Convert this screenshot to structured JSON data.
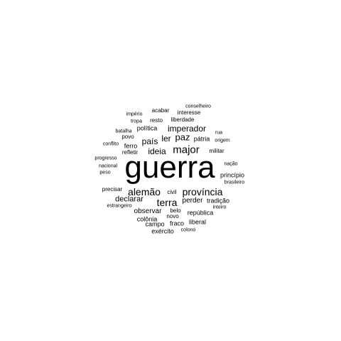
{
  "words": [
    {
      "text": "guerra"
    },
    {
      "text": "alemão"
    },
    {
      "text": "província"
    },
    {
      "text": "major"
    },
    {
      "text": "terra"
    },
    {
      "text": "imperador"
    },
    {
      "text": "paz"
    },
    {
      "text": "país"
    },
    {
      "text": "ideia"
    },
    {
      "text": "ler"
    },
    {
      "text": "declarar"
    },
    {
      "text": "perder"
    },
    {
      "text": "observar"
    },
    {
      "text": "política"
    },
    {
      "text": "pátria"
    },
    {
      "text": "república"
    },
    {
      "text": "tradição"
    },
    {
      "text": "princípio"
    },
    {
      "text": "militar"
    },
    {
      "text": "civil"
    },
    {
      "text": "colônia"
    },
    {
      "text": "campo"
    },
    {
      "text": "fraco"
    },
    {
      "text": "liberal"
    },
    {
      "text": "exército"
    },
    {
      "text": "novo"
    },
    {
      "text": "belo"
    },
    {
      "text": "ferro"
    },
    {
      "text": "refletir"
    },
    {
      "text": "povo"
    },
    {
      "text": "batalha"
    },
    {
      "text": "resto"
    },
    {
      "text": "liberdade"
    },
    {
      "text": "interesse"
    },
    {
      "text": "acabar"
    },
    {
      "text": "conselheiro"
    },
    {
      "text": "império"
    },
    {
      "text": "tropa"
    },
    {
      "text": "conflito"
    },
    {
      "text": "progresso"
    },
    {
      "text": "nacional"
    },
    {
      "text": "peso"
    },
    {
      "text": "precisar"
    },
    {
      "text": "estrangeiro"
    },
    {
      "text": "nação"
    },
    {
      "text": "brasileiro"
    },
    {
      "text": "origem"
    },
    {
      "text": "rua"
    },
    {
      "text": "inteiro"
    },
    {
      "text": "colono"
    }
  ]
}
